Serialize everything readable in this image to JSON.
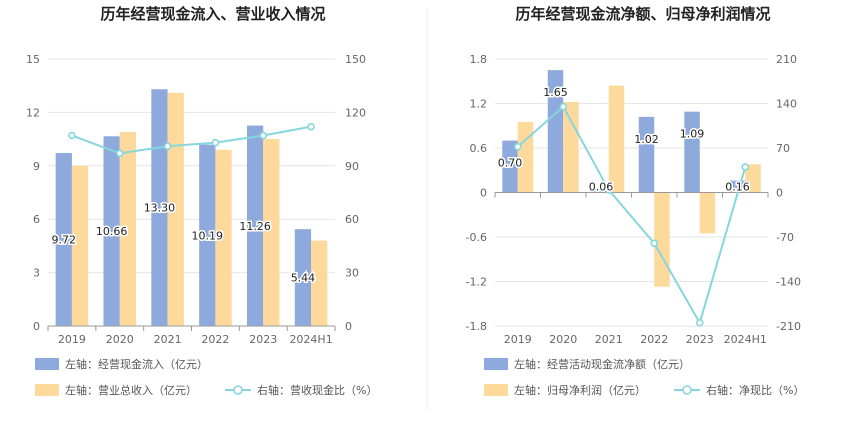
{
  "colors": {
    "bar1": "#8eaadc",
    "bar2": "#fdd99b",
    "line": "#86d6dd",
    "grid": "#e6e6e6",
    "axis": "#999999"
  },
  "chart_data": [
    {
      "type": "bar",
      "title": "历年经营现金流入、营业收入情况",
      "categories": [
        "2019",
        "2020",
        "2021",
        "2022",
        "2023",
        "2024H1"
      ],
      "ylim_left": [
        0,
        15
      ],
      "ylim_right": [
        0,
        150
      ],
      "yticks_left": [
        "15",
        "12",
        "9",
        "6",
        "3",
        "0"
      ],
      "yticks_right": [
        "150",
        "120",
        "90",
        "60",
        "30",
        "0"
      ],
      "series": [
        {
          "name": "左轴：经营现金流入（亿元）",
          "axis": "left",
          "kind": "bar",
          "values": [
            9.72,
            10.66,
            13.3,
            10.19,
            11.26,
            5.44
          ],
          "labels": [
            "9.72",
            "10.66",
            "13.30",
            "10.19",
            "11.26",
            "5.44"
          ]
        },
        {
          "name": "左轴：营业总收入（亿元）",
          "axis": "left",
          "kind": "bar",
          "values": [
            9.0,
            10.9,
            13.1,
            9.9,
            10.5,
            4.8
          ]
        },
        {
          "name": "右轴：营收现金比（%）",
          "axis": "right",
          "kind": "line",
          "values": [
            107,
            97,
            101,
            103,
            107,
            112
          ]
        }
      ],
      "grid": true,
      "legend": "bottom"
    },
    {
      "type": "bar",
      "title": "历年经营现金流净额、归母净利润情况",
      "categories": [
        "2019",
        "2020",
        "2021",
        "2022",
        "2023",
        "2024H1"
      ],
      "ylim_left": [
        -1.8,
        1.8
      ],
      "ylim_right": [
        -210,
        210
      ],
      "yticks_left": [
        "1.8",
        "1.2",
        "0.6",
        "0",
        "-0.6",
        "-1.2",
        "-1.8"
      ],
      "yticks_right": [
        "210",
        "140",
        "70",
        "0",
        "-70",
        "-140",
        "-210"
      ],
      "series": [
        {
          "name": "左轴：经营活动现金流净额（亿元）",
          "axis": "left",
          "kind": "bar",
          "values": [
            0.7,
            1.65,
            0.06,
            1.02,
            1.09,
            0.16
          ],
          "labels": [
            "0.70",
            "1.65",
            "0.06",
            "1.02",
            "1.09",
            "0.16"
          ]
        },
        {
          "name": "左轴：归母净利润（亿元）",
          "axis": "left",
          "kind": "bar",
          "values": [
            0.95,
            1.22,
            1.44,
            -1.27,
            -0.55,
            0.38
          ]
        },
        {
          "name": "右轴：净现比（%）",
          "axis": "right",
          "kind": "line",
          "values": [
            72,
            135,
            4,
            -80,
            -205,
            40
          ]
        }
      ],
      "grid": true,
      "legend": "bottom"
    }
  ]
}
